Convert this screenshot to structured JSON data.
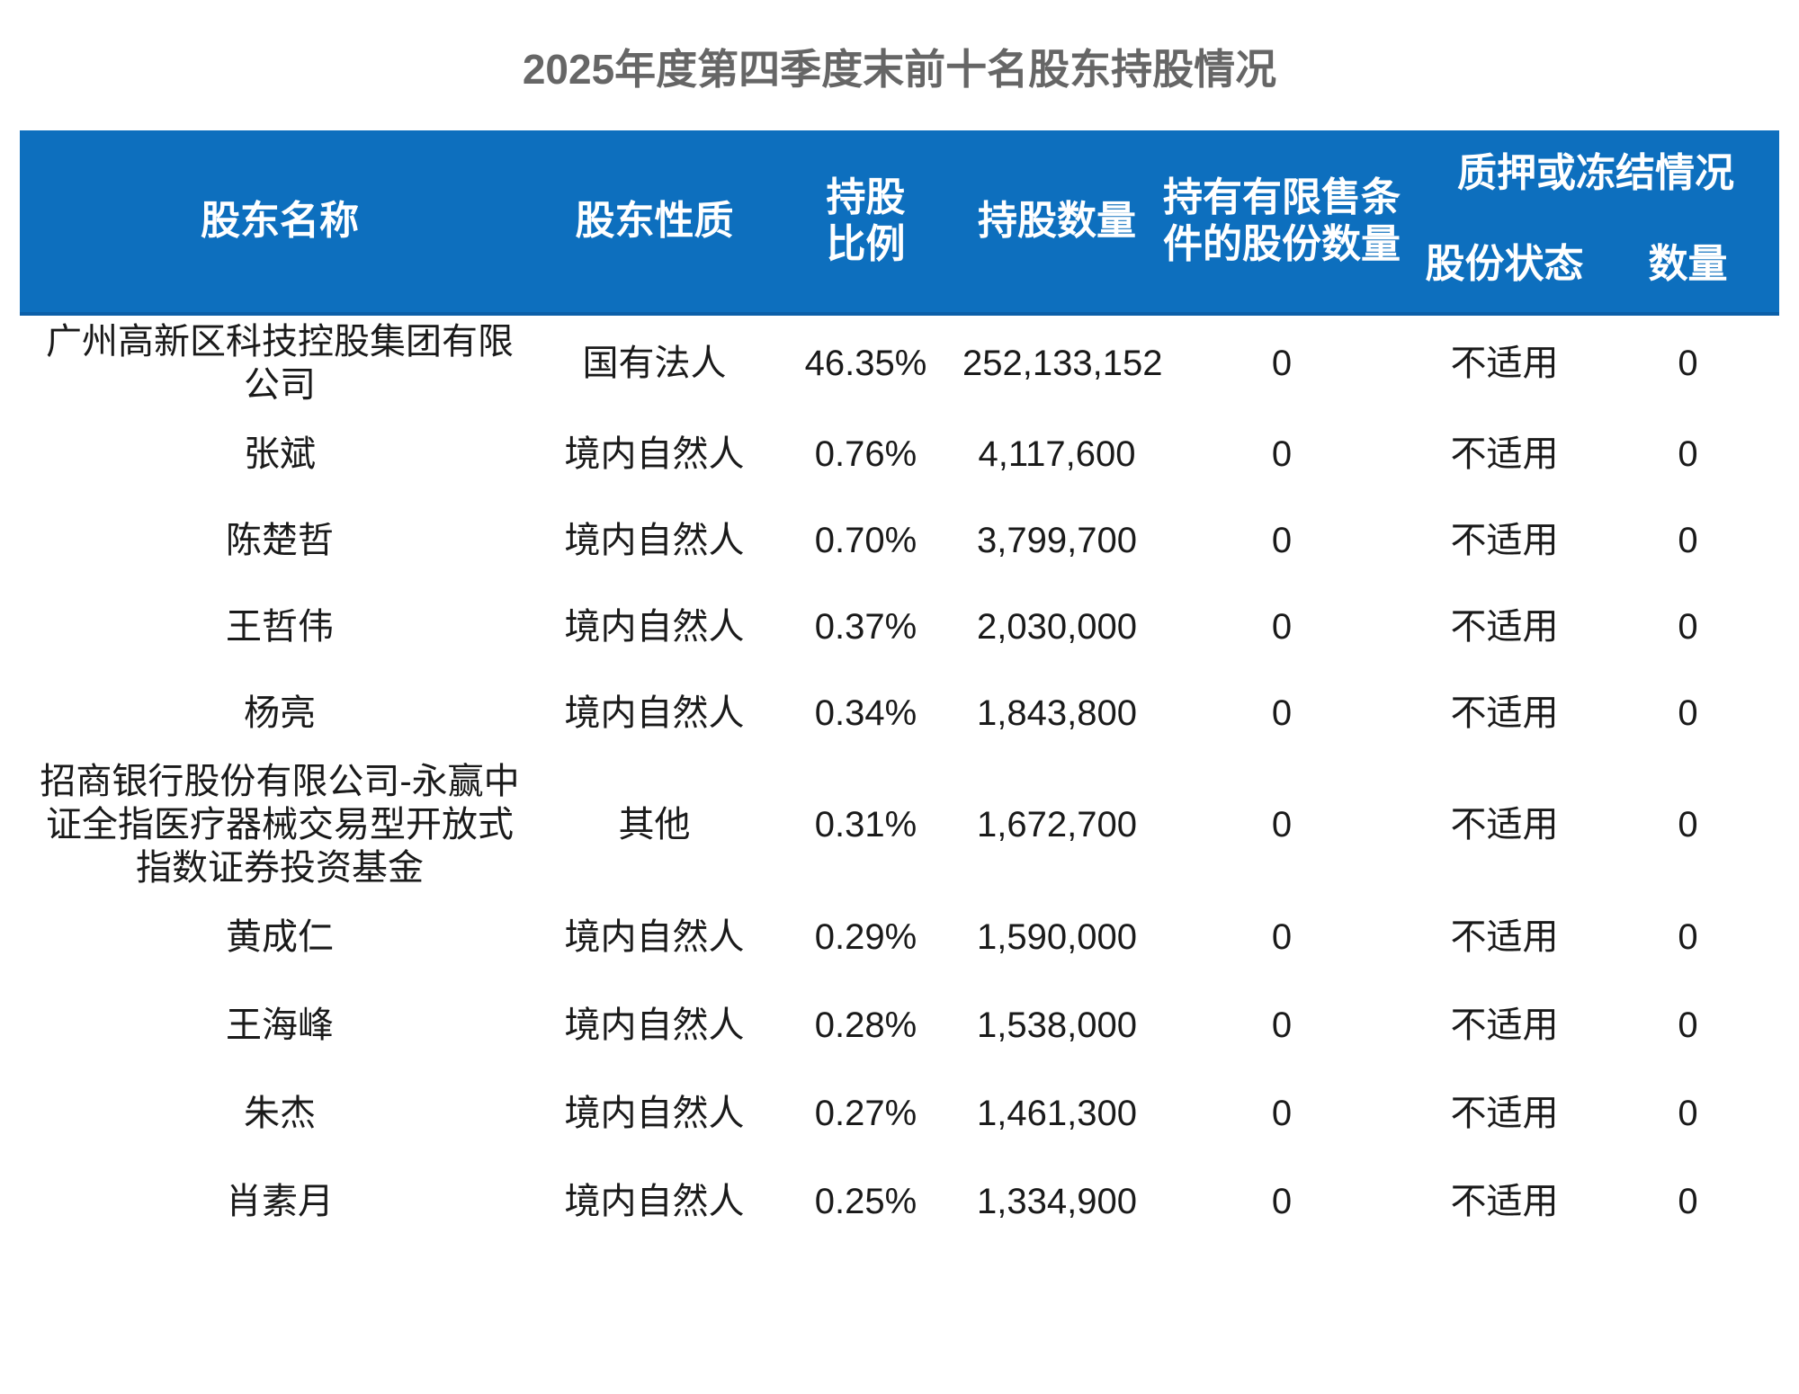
{
  "page": {
    "title": "2025年度第四季度末前十名股东持股情况"
  },
  "table": {
    "header": {
      "shareholder_name": "股东名称",
      "shareholder_nature": "股东性质",
      "shareholding_ratio": "持股比例",
      "shares_held": "持股数量",
      "restricted_shares": "持有有限售条件的股份数量",
      "pledge_or_freeze": "质押或冻结情况",
      "share_status": "股份状态",
      "quantity": "数量"
    },
    "rows": [
      {
        "name": "广州高新区科技控股集团有限公司",
        "nature": "国有法人",
        "ratio": "46.35%",
        "shares": "252,133,152",
        "restricted": "0",
        "status": "不适用",
        "qty": "0"
      },
      {
        "name": "张斌",
        "nature": "境内自然人",
        "ratio": "0.76%",
        "shares": "4,117,600",
        "restricted": "0",
        "status": "不适用",
        "qty": "0"
      },
      {
        "name": "陈楚哲",
        "nature": "境内自然人",
        "ratio": "0.70%",
        "shares": "3,799,700",
        "restricted": "0",
        "status": "不适用",
        "qty": "0"
      },
      {
        "name": "王哲伟",
        "nature": "境内自然人",
        "ratio": "0.37%",
        "shares": "2,030,000",
        "restricted": "0",
        "status": "不适用",
        "qty": "0"
      },
      {
        "name": "杨亮",
        "nature": "境内自然人",
        "ratio": "0.34%",
        "shares": "1,843,800",
        "restricted": "0",
        "status": "不适用",
        "qty": "0"
      },
      {
        "name": "招商银行股份有限公司-永赢中证全指医疗器械交易型开放式指数证券投资基金",
        "nature": "其他",
        "ratio": "0.31%",
        "shares": "1,672,700",
        "restricted": "0",
        "status": "不适用",
        "qty": "0"
      },
      {
        "name": "黄成仁",
        "nature": "境内自然人",
        "ratio": "0.29%",
        "shares": "1,590,000",
        "restricted": "0",
        "status": "不适用",
        "qty": "0"
      },
      {
        "name": "王海峰",
        "nature": "境内自然人",
        "ratio": "0.28%",
        "shares": "1,538,000",
        "restricted": "0",
        "status": "不适用",
        "qty": "0"
      },
      {
        "name": "朱杰",
        "nature": "境内自然人",
        "ratio": "0.27%",
        "shares": "1,461,300",
        "restricted": "0",
        "status": "不适用",
        "qty": "0"
      },
      {
        "name": "肖素月",
        "nature": "境内自然人",
        "ratio": "0.25%",
        "shares": "1,334,900",
        "restricted": "0",
        "status": "不适用",
        "qty": "0"
      }
    ]
  },
  "colors": {
    "header_bg": "#0d6fbe",
    "header_border_bottom": "#0b5fa8",
    "title_text": "#666666",
    "header_text": "#ffffff",
    "body_text": "#1a1a1a",
    "page_bg": "#ffffff"
  }
}
